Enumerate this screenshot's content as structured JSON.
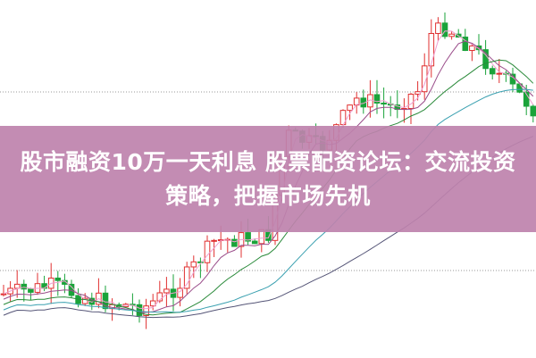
{
  "article": {
    "title": "股市融资10万一天利息 股票配资论坛：交流投资策略，把握市场先机"
  },
  "colors": {
    "banner": "#c48db5",
    "up_candle": "#e03030",
    "down_candle": "#1aa33a",
    "ma_lines": [
      "#f0a0d0",
      "#9a4d8a",
      "#2a8a3a",
      "#3aa0b0",
      "#555577"
    ]
  }
}
